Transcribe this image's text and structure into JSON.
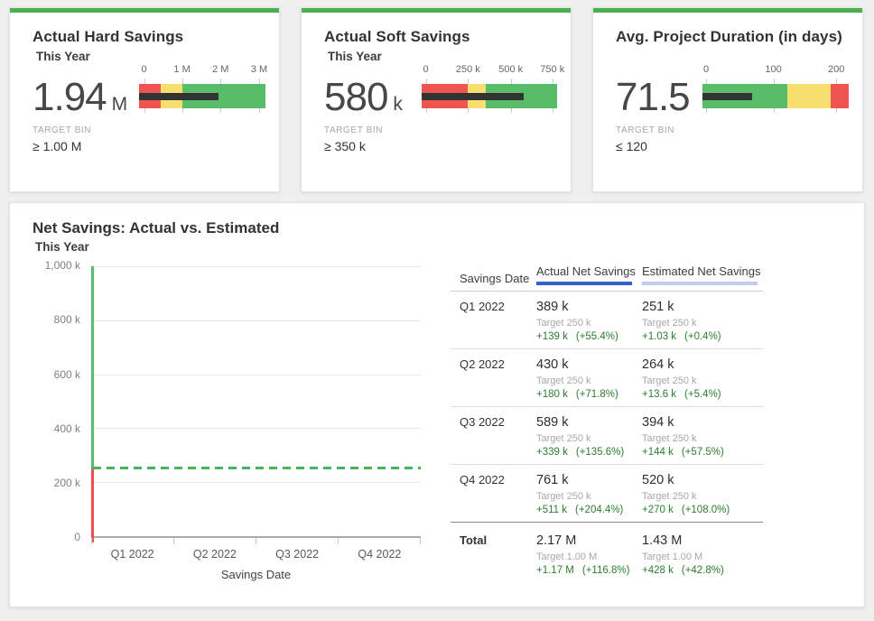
{
  "colors": {
    "card_accent": "#4caf50",
    "bullet_red": "#ee5450",
    "bullet_yellow": "#f6df6e",
    "bullet_green": "#57bd68",
    "measure_bar": "#333333",
    "actual_blue": "#3462c9",
    "estimated_lavender": "#c3ccee",
    "target_line_green": "#44b55c",
    "axis_above_target_green": "#57bd68",
    "axis_below_target_red": "#f0504c",
    "delta_text_green": "#2e7d32"
  },
  "kpi_cards": [
    {
      "title": "Actual Hard Savings",
      "subtitle": "This Year",
      "value": "1.94",
      "unit": "M",
      "target_bin_label": "TARGET BIN",
      "target_bin_value": "≥ 1.00 M",
      "bullet": {
        "ticks": [
          {
            "label": "0",
            "pct": 4
          },
          {
            "label": "1 M",
            "pct": 34
          },
          {
            "label": "2 M",
            "pct": 64.5
          },
          {
            "label": "3 M",
            "pct": 95
          }
        ],
        "zones": [
          {
            "color": "#ee5450",
            "pct": 17
          },
          {
            "color": "#f6df6e",
            "pct": 17
          },
          {
            "color": "#57bd68",
            "pct": 66
          }
        ],
        "measure_pct": 62.5
      }
    },
    {
      "title": "Actual Soft Savings",
      "subtitle": "This Year",
      "value": "580",
      "unit": "k",
      "target_bin_label": "TARGET BIN",
      "target_bin_value": "≥ 350 k",
      "bullet": {
        "ticks": [
          {
            "label": "0",
            "pct": 3
          },
          {
            "label": "250 k",
            "pct": 34.2
          },
          {
            "label": "500 k",
            "pct": 65.8
          },
          {
            "label": "750 k",
            "pct": 96.5
          }
        ],
        "zones": [
          {
            "color": "#ee5450",
            "pct": 34
          },
          {
            "color": "#f6df6e",
            "pct": 13
          },
          {
            "color": "#57bd68",
            "pct": 53
          }
        ],
        "measure_pct": 75.5
      }
    },
    {
      "title": "Avg. Project Duration (in days)",
      "subtitle": "",
      "value": "71.5",
      "unit": "",
      "target_bin_label": "TARGET BIN",
      "target_bin_value": "≤ 120",
      "bullet": {
        "ticks": [
          {
            "label": "0",
            "pct": 2.5
          },
          {
            "label": "100",
            "pct": 48.5
          },
          {
            "label": "200",
            "pct": 91.5
          }
        ],
        "zones": [
          {
            "color": "#57bd68",
            "pct": 58
          },
          {
            "color": "#f6df6e",
            "pct": 29.5
          },
          {
            "color": "#ee5450",
            "pct": 12.5
          }
        ],
        "measure_pct": 34
      }
    }
  ],
  "main_chart": {
    "title": "Net Savings: Actual vs. Estimated",
    "subtitle": "This Year",
    "x_title": "Savings Date",
    "y_ticks": [
      "1,000 k",
      "800 k",
      "600 k",
      "400 k",
      "200 k",
      "0"
    ],
    "x_ticks": [
      "Q1 2022",
      "Q2 2022",
      "Q3 2022",
      "Q4 2022"
    ],
    "bars": {
      "actual_pcts": [
        38.9,
        43.0,
        58.9,
        76.1
      ],
      "estimated_pcts": [
        25.1,
        26.4,
        39.4,
        52.0
      ]
    }
  },
  "chart_data": [
    {
      "type": "bullet",
      "title": "Actual Hard Savings",
      "subtitle": "This Year",
      "value": 1940000,
      "value_label": "1.94 M",
      "target_bin": "≥ 1.00 M",
      "axis_ticks": [
        0,
        1000000,
        2000000,
        3000000
      ],
      "bands": [
        {
          "range": [
            0,
            550000
          ],
          "color": "red"
        },
        {
          "range": [
            550000,
            1000000
          ],
          "color": "yellow"
        },
        {
          "range": [
            1000000,
            3250000
          ],
          "color": "green"
        }
      ]
    },
    {
      "type": "bullet",
      "title": "Actual Soft Savings",
      "subtitle": "This Year",
      "value": 580000,
      "value_label": "580 k",
      "target_bin": "≥ 350 k",
      "axis_ticks": [
        0,
        250000,
        500000,
        750000
      ],
      "bands": [
        {
          "range": [
            0,
            255000
          ],
          "color": "red"
        },
        {
          "range": [
            255000,
            350000
          ],
          "color": "yellow"
        },
        {
          "range": [
            350000,
            800000
          ],
          "color": "green"
        }
      ]
    },
    {
      "type": "bullet",
      "title": "Avg. Project Duration (in days)",
      "value": 71.5,
      "value_label": "71.5",
      "target_bin": "≤ 120",
      "axis_ticks": [
        0,
        100,
        200
      ],
      "bands": [
        {
          "range": [
            0,
            120
          ],
          "color": "green"
        },
        {
          "range": [
            120,
            185
          ],
          "color": "yellow"
        },
        {
          "range": [
            185,
            212
          ],
          "color": "red"
        }
      ]
    },
    {
      "type": "bar",
      "title": "Net Savings: Actual vs. Estimated",
      "subtitle": "This Year",
      "xlabel": "Savings Date",
      "ylim": [
        0,
        1000000
      ],
      "y_tick_step": 200000,
      "categories": [
        "Q1 2022",
        "Q2 2022",
        "Q3 2022",
        "Q4 2022"
      ],
      "series": [
        {
          "name": "Actual Net Savings",
          "values": [
            389000,
            430000,
            589000,
            761000
          ]
        },
        {
          "name": "Estimated Net Savings",
          "values": [
            251000,
            264000,
            394000,
            520000
          ]
        }
      ],
      "target_line": 250000,
      "totals": {
        "actual": 2170000,
        "estimated": 1430000,
        "target": 1000000
      },
      "legend_position": "right-table",
      "grid": true
    }
  ],
  "table": {
    "headers": {
      "period": "Savings Date",
      "actual": "Actual Net Savings",
      "estimated": "Estimated Net Savings"
    },
    "rows": [
      {
        "period": "Q1 2022",
        "actual": {
          "value": "389 k",
          "target": "Target 250 k",
          "delta": "+139 k",
          "delta_pct": "(+55.4%)"
        },
        "estimated": {
          "value": "251 k",
          "target": "Target 250 k",
          "delta": "+1.03 k",
          "delta_pct": "(+0.4%)"
        }
      },
      {
        "period": "Q2 2022",
        "actual": {
          "value": "430 k",
          "target": "Target 250 k",
          "delta": "+180 k",
          "delta_pct": "(+71.8%)"
        },
        "estimated": {
          "value": "264 k",
          "target": "Target 250 k",
          "delta": "+13.6 k",
          "delta_pct": "(+5.4%)"
        }
      },
      {
        "period": "Q3 2022",
        "actual": {
          "value": "589 k",
          "target": "Target 250 k",
          "delta": "+339 k",
          "delta_pct": "(+135.6%)"
        },
        "estimated": {
          "value": "394 k",
          "target": "Target 250 k",
          "delta": "+144 k",
          "delta_pct": "(+57.5%)"
        }
      },
      {
        "period": "Q4 2022",
        "actual": {
          "value": "761 k",
          "target": "Target 250 k",
          "delta": "+511 k",
          "delta_pct": "(+204.4%)"
        },
        "estimated": {
          "value": "520 k",
          "target": "Target 250 k",
          "delta": "+270 k",
          "delta_pct": "(+108.0%)"
        }
      },
      {
        "period": "Total",
        "actual": {
          "value": "2.17 M",
          "target": "Target 1.00 M",
          "delta": "+1.17 M",
          "delta_pct": "(+116.8%)"
        },
        "estimated": {
          "value": "1.43 M",
          "target": "Target 1.00 M",
          "delta": "+428 k",
          "delta_pct": "(+42.8%)"
        }
      }
    ]
  }
}
